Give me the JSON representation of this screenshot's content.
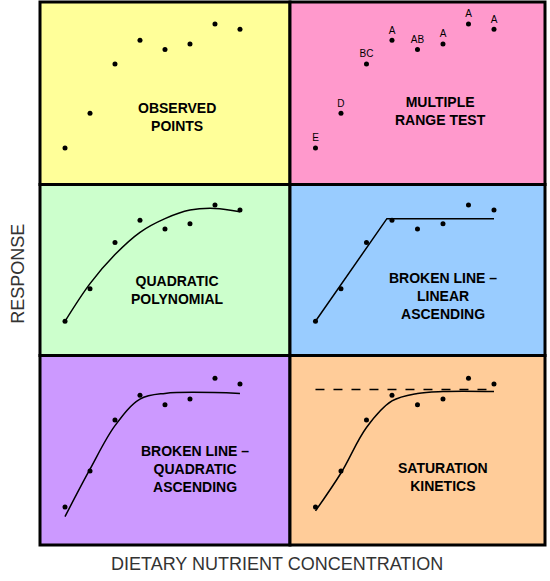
{
  "x_label": "DIETARY NUTRIENT CONCENTRATION",
  "y_label": "RESPONSE",
  "chart_data": [
    {
      "type": "scatter",
      "title": "OBSERVED\nPOINTS",
      "xlim": [
        0,
        10
      ],
      "ylim": [
        0,
        100
      ],
      "xticks": [],
      "yticks": [],
      "tick_labels": false,
      "grid": false,
      "series": [
        {
          "type": "scatter",
          "marker": "circle",
          "color": "#000000",
          "x": [
            1,
            2,
            3,
            4,
            5,
            6,
            7,
            8
          ],
          "values": [
            20,
            39,
            66,
            79,
            74,
            77,
            88,
            85
          ]
        }
      ]
    },
    {
      "type": "scatter",
      "title": "MULTIPLE\nRANGE TEST",
      "xlim": [
        0,
        10
      ],
      "ylim": [
        0,
        100
      ],
      "xticks": [],
      "yticks": [],
      "tick_labels": false,
      "grid": false,
      "series": [
        {
          "type": "scatter",
          "marker": "circle",
          "color": "#000000",
          "x": [
            1,
            2,
            3,
            4,
            5,
            6,
            7,
            8
          ],
          "values": [
            20,
            39,
            66,
            79,
            74,
            77,
            88,
            85
          ],
          "labels": [
            "E",
            "D",
            "BC",
            "A",
            "AB",
            "A",
            "A",
            "A"
          ]
        }
      ]
    },
    {
      "type": "scatter",
      "title": "QUADRATIC\nPOLYNOMIAL",
      "xlim": [
        0,
        10
      ],
      "ylim": [
        0,
        100
      ],
      "xticks": [],
      "yticks": [],
      "tick_labels": false,
      "grid": false,
      "series": [
        {
          "type": "scatter",
          "marker": "circle",
          "color": "#000000",
          "x": [
            1,
            2,
            3,
            4,
            5,
            6,
            7,
            8
          ],
          "values": [
            20,
            39,
            66,
            79,
            74,
            77,
            88,
            85
          ]
        },
        {
          "type": "spline",
          "line_style": "solid",
          "color": "#000000",
          "x": [
            1,
            2,
            3,
            4,
            5,
            6,
            7,
            8
          ],
          "values": [
            20,
            42,
            59,
            72,
            80,
            85,
            86,
            84
          ]
        }
      ]
    },
    {
      "type": "scatter",
      "title": "BROKEN LINE –\nLINEAR\nASCENDING",
      "xlim": [
        0,
        10
      ],
      "ylim": [
        0,
        100
      ],
      "xticks": [],
      "yticks": [],
      "tick_labels": false,
      "grid": false,
      "series": [
        {
          "type": "scatter",
          "marker": "circle",
          "color": "#000000",
          "x": [
            1,
            2,
            3,
            4,
            5,
            6,
            7,
            8
          ],
          "values": [
            20,
            39,
            66,
            79,
            74,
            77,
            88,
            85
          ]
        },
        {
          "type": "line",
          "line_style": "solid",
          "color": "#000000",
          "x": [
            1,
            3.8,
            8
          ],
          "values": [
            20,
            80,
            80
          ]
        }
      ]
    },
    {
      "type": "scatter",
      "title": "BROKEN LINE –\nQUADRATIC\nASCENDING",
      "xlim": [
        0,
        10
      ],
      "ylim": [
        0,
        100
      ],
      "xticks": [],
      "yticks": [],
      "tick_labels": false,
      "grid": false,
      "series": [
        {
          "type": "scatter",
          "marker": "circle",
          "color": "#000000",
          "x": [
            1,
            2,
            3,
            4,
            5,
            6,
            7,
            8
          ],
          "values": [
            20,
            39,
            66,
            79,
            74,
            77,
            88,
            85
          ]
        },
        {
          "type": "spline",
          "line_style": "solid",
          "color": "#000000",
          "x": [
            1,
            2,
            3,
            4,
            5,
            8
          ],
          "values": [
            15,
            40,
            63,
            77,
            80,
            80
          ]
        }
      ]
    },
    {
      "type": "scatter",
      "title": "SATURATION\nKINETICS",
      "xlim": [
        0,
        10
      ],
      "ylim": [
        0,
        100
      ],
      "xticks": [],
      "yticks": [],
      "tick_labels": false,
      "grid": false,
      "series": [
        {
          "type": "scatter",
          "marker": "circle",
          "color": "#000000",
          "x": [
            1,
            2,
            3,
            4,
            5,
            6,
            7,
            8
          ],
          "values": [
            20,
            39,
            66,
            79,
            74,
            77,
            88,
            85
          ]
        },
        {
          "type": "spline",
          "line_style": "solid",
          "color": "#000000",
          "x": [
            1,
            2,
            3,
            4,
            5,
            6,
            8
          ],
          "values": [
            18,
            38,
            62,
            76,
            80,
            81,
            81
          ]
        },
        {
          "type": "line",
          "line_style": "dashed",
          "color": "#000000",
          "x": [
            1,
            8
          ],
          "values": [
            82,
            82
          ]
        }
      ]
    }
  ]
}
